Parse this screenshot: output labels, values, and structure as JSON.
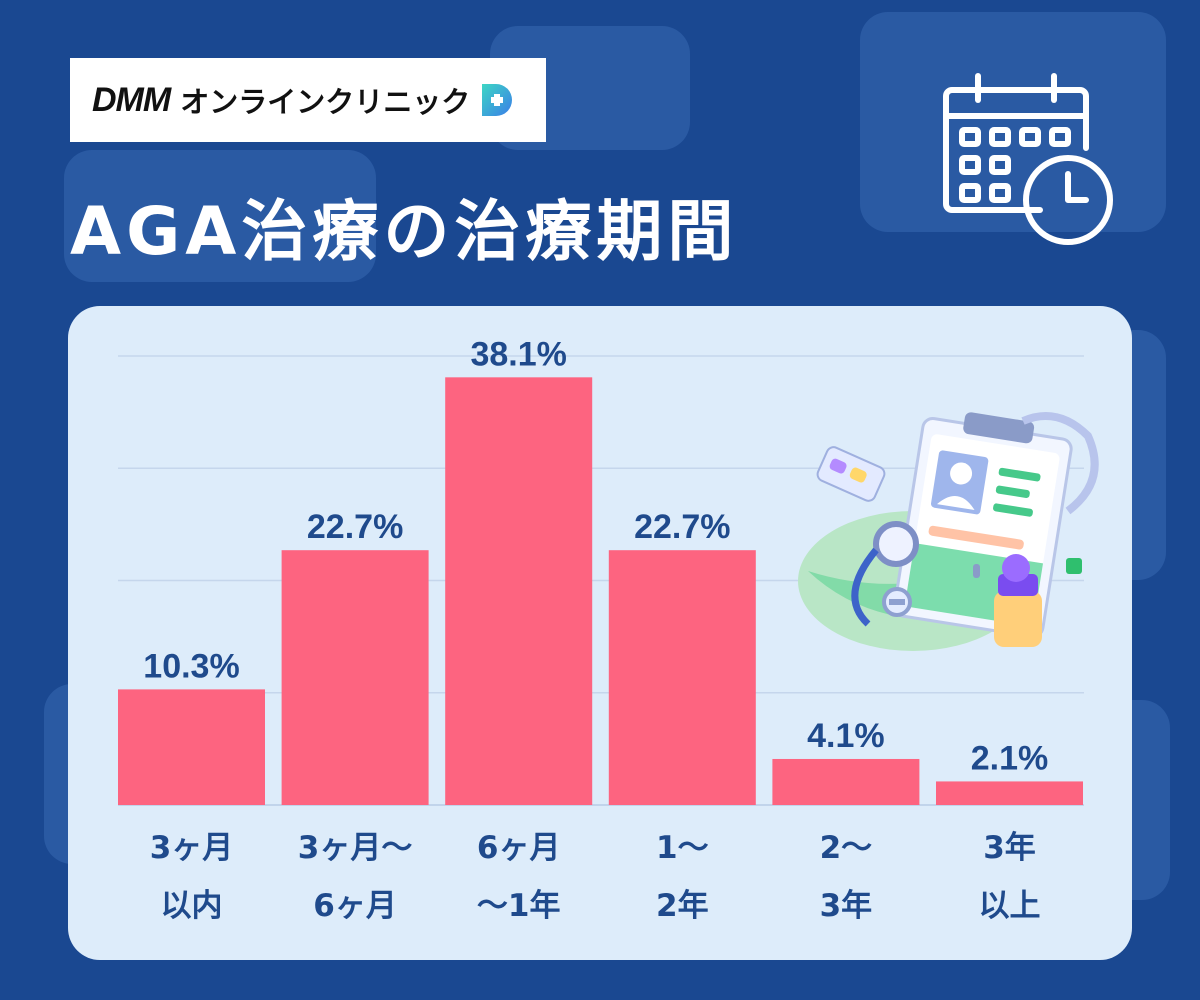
{
  "brand": {
    "name": "DMM",
    "service": "オンラインクリニック"
  },
  "title": "AGA治療の治療期間",
  "icons": {
    "calendar": "calendar-clock-icon",
    "illustration": "medical-clipboard-illustration"
  },
  "colors": {
    "background": "#1a4891",
    "panel": "#ddecfa",
    "bar": "#fd6480",
    "label": "#1f4a8c"
  },
  "chart_data": {
    "type": "bar",
    "title": "AGA治療の治療期間",
    "categories": [
      [
        "3ヶ月",
        "以内"
      ],
      [
        "3ヶ月〜",
        "6ヶ月"
      ],
      [
        "6ヶ月",
        "〜1年"
      ],
      [
        "1〜",
        "2年"
      ],
      [
        "2〜",
        "3年"
      ],
      [
        "3年",
        "以上"
      ]
    ],
    "values": [
      10.3,
      22.7,
      38.1,
      22.7,
      4.1,
      2.1
    ],
    "value_labels": [
      "10.3%",
      "22.7%",
      "38.1%",
      "22.7%",
      "4.1%",
      "2.1%"
    ],
    "unit": "%",
    "ylim": [
      0,
      40
    ],
    "grid": true
  }
}
